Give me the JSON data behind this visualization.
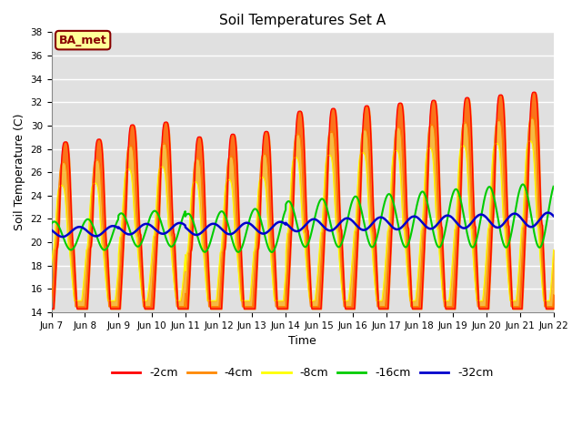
{
  "title": "Soil Temperatures Set A",
  "xlabel": "Time",
  "ylabel": "Soil Temperature (C)",
  "ylim": [
    14,
    38
  ],
  "yticks": [
    14,
    16,
    18,
    20,
    22,
    24,
    26,
    28,
    30,
    32,
    34,
    36,
    38
  ],
  "x_tick_labels": [
    "Jun 7",
    "Jun 8",
    "Jun 9",
    "Jun 10",
    "Jun 11",
    "Jun 12",
    "Jun 13",
    "Jun 14",
    "Jun 15",
    "Jun 16",
    "Jun 17",
    "Jun 18",
    "Jun 19",
    "Jun 20",
    "Jun 21",
    "Jun 22"
  ],
  "series_colors": [
    "#ff0000",
    "#ff8800",
    "#ffff00",
    "#00cc00",
    "#0000cc"
  ],
  "series_labels": [
    "-2cm",
    "-4cm",
    "-8cm",
    "-16cm",
    "-32cm"
  ],
  "fill_colors": [
    "#ff4400",
    "#ffaa00"
  ],
  "background_color": "#e0e0e0",
  "annotation_text": "BA_met",
  "annotation_bg": "#ffff99",
  "annotation_border": "#880000",
  "annotation_text_color": "#880000"
}
